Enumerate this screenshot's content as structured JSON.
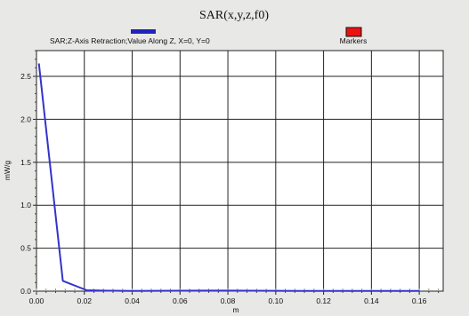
{
  "chart_data": {
    "type": "line",
    "title": "SAR(x,y,z,f0)",
    "xlabel": "m",
    "ylabel": "mW/g",
    "xlim": [
      0.0,
      0.17
    ],
    "ylim": [
      0.0,
      2.8
    ],
    "x_ticks": [
      0.0,
      0.02,
      0.04,
      0.06,
      0.08,
      0.1,
      0.12,
      0.14,
      0.16
    ],
    "x_tick_labels": [
      "0.00",
      "0.02",
      "0.04",
      "0.06",
      "0.08",
      "0.10",
      "0.12",
      "0.14",
      "0.16"
    ],
    "y_ticks": [
      0.0,
      0.5,
      1.0,
      1.5,
      2.0,
      2.5
    ],
    "y_tick_labels": [
      "0.0",
      "0.5",
      "1.0",
      "1.5",
      "2.0",
      "2.5"
    ],
    "grid": true,
    "legend_position": "top",
    "series": [
      {
        "name": "SAR;Z-Axis Retraction;Value Along Z, X=0, Y=0",
        "color": "#3333cc",
        "x": [
          0.001,
          0.011,
          0.021,
          0.03,
          0.04,
          0.05,
          0.06,
          0.07,
          0.08,
          0.09,
          0.1,
          0.11,
          0.12,
          0.13,
          0.14,
          0.15,
          0.16
        ],
        "y": [
          2.65,
          0.12,
          0.01,
          0.005,
          0.003,
          0.004,
          0.005,
          0.006,
          0.006,
          0.005,
          0.004,
          0.003,
          0.003,
          0.003,
          0.003,
          0.003,
          0.003
        ]
      }
    ],
    "markers_legend": {
      "name": "Markers",
      "color": "#ee1111"
    }
  }
}
